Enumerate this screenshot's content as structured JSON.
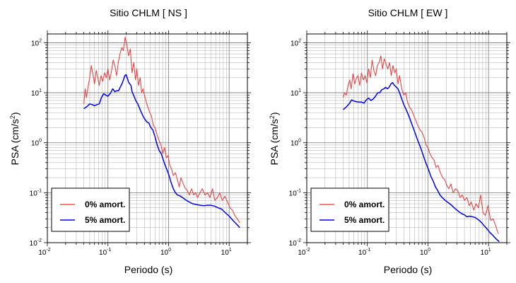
{
  "chart_data": [
    {
      "type": "line",
      "title": "Sitio CHLM [ NS ]",
      "xlabel": "Periodo (s)",
      "ylabel_main": "PSA (cm/s",
      "ylabel_sup": "2",
      "ylabel_close": ")",
      "x_scale": "log",
      "y_scale": "log",
      "xlim": [
        0.01,
        20
      ],
      "ylim": [
        0.01,
        150
      ],
      "grid": true,
      "legend_position": "lower-left",
      "x_ticks": [
        {
          "base": "10",
          "exp": "-2"
        },
        {
          "base": "10",
          "exp": "-1"
        },
        {
          "base": "10",
          "exp": "0"
        },
        {
          "base": "10",
          "exp": "1"
        }
      ],
      "y_ticks": [
        {
          "base": "10",
          "exp": "-2"
        },
        {
          "base": "10",
          "exp": "-1"
        },
        {
          "base": "10",
          "exp": "0"
        },
        {
          "base": "10",
          "exp": "1"
        },
        {
          "base": "10",
          "exp": "2"
        }
      ],
      "series": [
        {
          "name": "0% amort.",
          "color": "#ee3333",
          "x": [
            0.04,
            0.042,
            0.044,
            0.047,
            0.05,
            0.053,
            0.056,
            0.06,
            0.064,
            0.068,
            0.072,
            0.077,
            0.082,
            0.088,
            0.094,
            0.1,
            0.107,
            0.114,
            0.122,
            0.13,
            0.139,
            0.148,
            0.158,
            0.169,
            0.18,
            0.192,
            0.205,
            0.219,
            0.234,
            0.25,
            0.267,
            0.285,
            0.3,
            0.32,
            0.34,
            0.36,
            0.38,
            0.4,
            0.43,
            0.46,
            0.49,
            0.52,
            0.56,
            0.6,
            0.65,
            0.7,
            0.75,
            0.8,
            0.86,
            0.92,
            0.98,
            1.05,
            1.12,
            1.2,
            1.3,
            1.4,
            1.5,
            1.6,
            1.75,
            1.9,
            2.05,
            2.2,
            2.4,
            2.6,
            2.8,
            3.0,
            3.3,
            3.6,
            4.0,
            4.4,
            4.8,
            5.3,
            5.8,
            6.4,
            7.0,
            7.7,
            8.5,
            9.4,
            10.3,
            11.3,
            12.4,
            13.6,
            15.0
          ],
          "y": [
            6,
            12,
            8,
            13,
            20,
            35,
            25,
            15,
            28,
            20,
            14,
            22,
            17,
            25,
            20,
            30,
            18,
            26,
            45,
            35,
            22,
            40,
            60,
            80,
            70,
            130,
            90,
            55,
            75,
            25,
            40,
            18,
            30,
            14,
            20,
            10,
            12,
            9,
            6.5,
            5,
            4,
            3.5,
            2.2,
            2,
            1.4,
            1.1,
            0.9,
            0.6,
            0.8,
            0.5,
            0.55,
            0.35,
            0.3,
            0.22,
            0.25,
            0.18,
            0.13,
            0.2,
            0.15,
            0.12,
            0.11,
            0.09,
            0.12,
            0.09,
            0.1,
            0.08,
            0.1,
            0.12,
            0.09,
            0.1,
            0.08,
            0.12,
            0.07,
            0.08,
            0.1,
            0.07,
            0.085,
            0.065,
            0.05,
            0.045,
            0.035,
            0.03,
            0.025
          ]
        },
        {
          "name": "5% amort.",
          "color": "#0000ee",
          "x": [
            0.04,
            0.045,
            0.05,
            0.055,
            0.06,
            0.066,
            0.072,
            0.078,
            0.085,
            0.092,
            0.1,
            0.11,
            0.12,
            0.13,
            0.14,
            0.15,
            0.16,
            0.17,
            0.18,
            0.19,
            0.2,
            0.21,
            0.22,
            0.23,
            0.24,
            0.25,
            0.27,
            0.29,
            0.31,
            0.33,
            0.35,
            0.38,
            0.41,
            0.44,
            0.47,
            0.5,
            0.55,
            0.6,
            0.65,
            0.7,
            0.76,
            0.82,
            0.88,
            0.95,
            1.02,
            1.1,
            1.2,
            1.3,
            1.4,
            1.5,
            1.7,
            1.9,
            2.2,
            2.5,
            2.9,
            3.3,
            3.8,
            4.4,
            5.0,
            5.7,
            6.5,
            7.5,
            8.6,
            10,
            11.5,
            13,
            15
          ],
          "y": [
            4.8,
            5.3,
            6.0,
            5.8,
            5.5,
            5.8,
            6.0,
            8.0,
            9.5,
            9.0,
            8.5,
            9.8,
            12,
            10.5,
            11,
            11,
            13,
            15,
            18,
            22,
            23,
            19,
            16,
            15,
            14,
            10.5,
            8.5,
            6.8,
            6,
            5,
            4.2,
            3.4,
            2.9,
            2.6,
            2.5,
            2.1,
            1.8,
            1.3,
            0.9,
            0.7,
            0.6,
            0.45,
            0.35,
            0.28,
            0.22,
            0.16,
            0.12,
            0.1,
            0.09,
            0.088,
            0.08,
            0.072,
            0.065,
            0.06,
            0.058,
            0.056,
            0.055,
            0.056,
            0.056,
            0.054,
            0.05,
            0.047,
            0.04,
            0.034,
            0.028,
            0.024,
            0.02
          ]
        }
      ]
    },
    {
      "type": "line",
      "title": "Sitio CHLM [ EW ]",
      "xlabel": "Periodo (s)",
      "ylabel_main": "PSA (cm/s",
      "ylabel_sup": "2",
      "ylabel_close": ")",
      "x_scale": "log",
      "y_scale": "log",
      "xlim": [
        0.01,
        20
      ],
      "ylim": [
        0.01,
        150
      ],
      "grid": true,
      "legend_position": "lower-left",
      "x_ticks": [
        {
          "base": "10",
          "exp": "-2"
        },
        {
          "base": "10",
          "exp": "-1"
        },
        {
          "base": "10",
          "exp": "0"
        },
        {
          "base": "10",
          "exp": "1"
        }
      ],
      "y_ticks": [
        {
          "base": "10",
          "exp": "-2"
        },
        {
          "base": "10",
          "exp": "-1"
        },
        {
          "base": "10",
          "exp": "0"
        },
        {
          "base": "10",
          "exp": "1"
        },
        {
          "base": "10",
          "exp": "2"
        }
      ],
      "series": [
        {
          "name": "0% amort.",
          "color": "#ee3333",
          "x": [
            0.04,
            0.042,
            0.045,
            0.048,
            0.051,
            0.054,
            0.058,
            0.062,
            0.066,
            0.07,
            0.075,
            0.08,
            0.086,
            0.092,
            0.098,
            0.105,
            0.112,
            0.12,
            0.128,
            0.137,
            0.146,
            0.156,
            0.167,
            0.178,
            0.19,
            0.203,
            0.217,
            0.232,
            0.248,
            0.265,
            0.283,
            0.3,
            0.32,
            0.34,
            0.37,
            0.4,
            0.43,
            0.46,
            0.5,
            0.54,
            0.58,
            0.63,
            0.68,
            0.74,
            0.8,
            0.86,
            0.93,
            1.0,
            1.08,
            1.17,
            1.26,
            1.36,
            1.47,
            1.6,
            1.75,
            1.9,
            2.05,
            2.2,
            2.4,
            2.6,
            2.85,
            3.1,
            3.4,
            3.7,
            4.0,
            4.4,
            4.8,
            5.2,
            5.7,
            6.2,
            6.8,
            7.4,
            8.1,
            8.9,
            9.8,
            10.8,
            11.9,
            13.1,
            14.5
          ],
          "y": [
            8,
            10,
            9,
            14,
            18,
            12,
            24,
            15,
            20,
            22,
            14,
            25,
            18,
            22,
            16,
            30,
            20,
            45,
            28,
            22,
            35,
            40,
            55,
            30,
            48,
            38,
            30,
            40,
            22,
            35,
            25,
            30,
            15,
            22,
            12,
            9,
            10,
            6.5,
            5,
            4.5,
            3.5,
            2.8,
            2.2,
            1.8,
            1.6,
            1.3,
            0.9,
            0.8,
            0.6,
            0.5,
            0.45,
            0.32,
            0.35,
            0.25,
            0.2,
            0.18,
            0.14,
            0.12,
            0.15,
            0.1,
            0.12,
            0.11,
            0.08,
            0.09,
            0.07,
            0.08,
            0.055,
            0.065,
            0.045,
            0.06,
            0.05,
            0.09,
            0.04,
            0.035,
            0.055,
            0.028,
            0.03,
            0.022,
            0.015
          ]
        },
        {
          "name": "5% amort.",
          "color": "#0000ee",
          "x": [
            0.04,
            0.045,
            0.05,
            0.055,
            0.06,
            0.066,
            0.072,
            0.08,
            0.088,
            0.096,
            0.105,
            0.115,
            0.125,
            0.136,
            0.148,
            0.16,
            0.173,
            0.187,
            0.2,
            0.215,
            0.23,
            0.245,
            0.26,
            0.28,
            0.3,
            0.32,
            0.34,
            0.37,
            0.4,
            0.44,
            0.48,
            0.52,
            0.57,
            0.62,
            0.68,
            0.74,
            0.8,
            0.87,
            0.95,
            1.03,
            1.12,
            1.22,
            1.33,
            1.45,
            1.58,
            1.72,
            1.88,
            2.05,
            2.25,
            2.45,
            2.7,
            3.0,
            3.3,
            3.6,
            4.0,
            4.4,
            4.9,
            5.4,
            6.0,
            6.7,
            7.5,
            8.4,
            9.4,
            10.5,
            11.8,
            13.2,
            15
          ],
          "y": [
            4.6,
            5.2,
            6.0,
            7.2,
            6.8,
            6.6,
            6.5,
            6.5,
            6.2,
            7.2,
            7.8,
            7.0,
            7.5,
            8.5,
            10,
            10,
            11.5,
            12,
            12.8,
            12,
            13,
            15,
            16,
            14,
            13,
            12,
            10,
            7.5,
            5.8,
            4.5,
            3.5,
            2.7,
            2.0,
            1.5,
            1.1,
            0.85,
            0.65,
            0.48,
            0.36,
            0.28,
            0.21,
            0.17,
            0.13,
            0.11,
            0.09,
            0.08,
            0.072,
            0.066,
            0.061,
            0.056,
            0.05,
            0.045,
            0.041,
            0.038,
            0.036,
            0.033,
            0.034,
            0.033,
            0.032,
            0.029,
            0.026,
            0.022,
            0.019,
            0.016,
            0.014,
            0.012,
            0.0105
          ]
        }
      ]
    }
  ]
}
